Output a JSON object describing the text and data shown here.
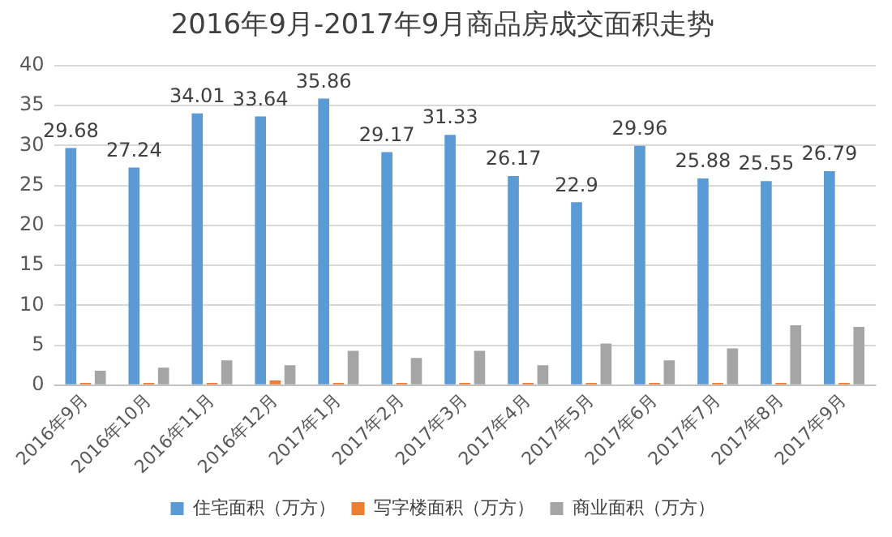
{
  "chart_data": {
    "type": "bar",
    "title": "2016年9月-2017年9月商品房成交面积走势",
    "categories": [
      "2016年9月",
      "2016年10月",
      "2016年11月",
      "2016年12月",
      "2017年1月",
      "2017年2月",
      "2017年3月",
      "2017年4月",
      "2017年5月",
      "2017年6月",
      "2017年7月",
      "2017年8月",
      "2017年9月"
    ],
    "series": [
      {
        "name": "住宅面积（万方）",
        "color": "#5b9bd5",
        "values": [
          29.68,
          27.24,
          34.01,
          33.64,
          35.86,
          29.17,
          31.33,
          26.17,
          22.9,
          29.96,
          25.88,
          25.55,
          26.79
        ],
        "value_labels": [
          "29.68",
          "27.24",
          "34.01",
          "33.64",
          "35.86",
          "29.17",
          "31.33",
          "26.17",
          "22.9",
          "29.96",
          "25.88",
          "25.55",
          "26.79"
        ]
      },
      {
        "name": "写字楼面积（万方）",
        "color": "#ed7d31",
        "values": [
          0.3,
          0.3,
          0.3,
          0.6,
          0.3,
          0.3,
          0.3,
          0.3,
          0.3,
          0.3,
          0.3,
          0.3,
          0.3
        ]
      },
      {
        "name": "商业面积（万方）",
        "color": "#a5a5a5",
        "values": [
          1.8,
          2.2,
          3.1,
          2.5,
          4.3,
          3.4,
          4.3,
          2.5,
          5.2,
          3.1,
          4.6,
          7.5,
          7.3
        ]
      }
    ],
    "ylim": [
      0,
      40
    ],
    "yticks": [
      0,
      5,
      10,
      15,
      20,
      25,
      30,
      35,
      40
    ],
    "grid": "y",
    "legend": "bottom"
  }
}
